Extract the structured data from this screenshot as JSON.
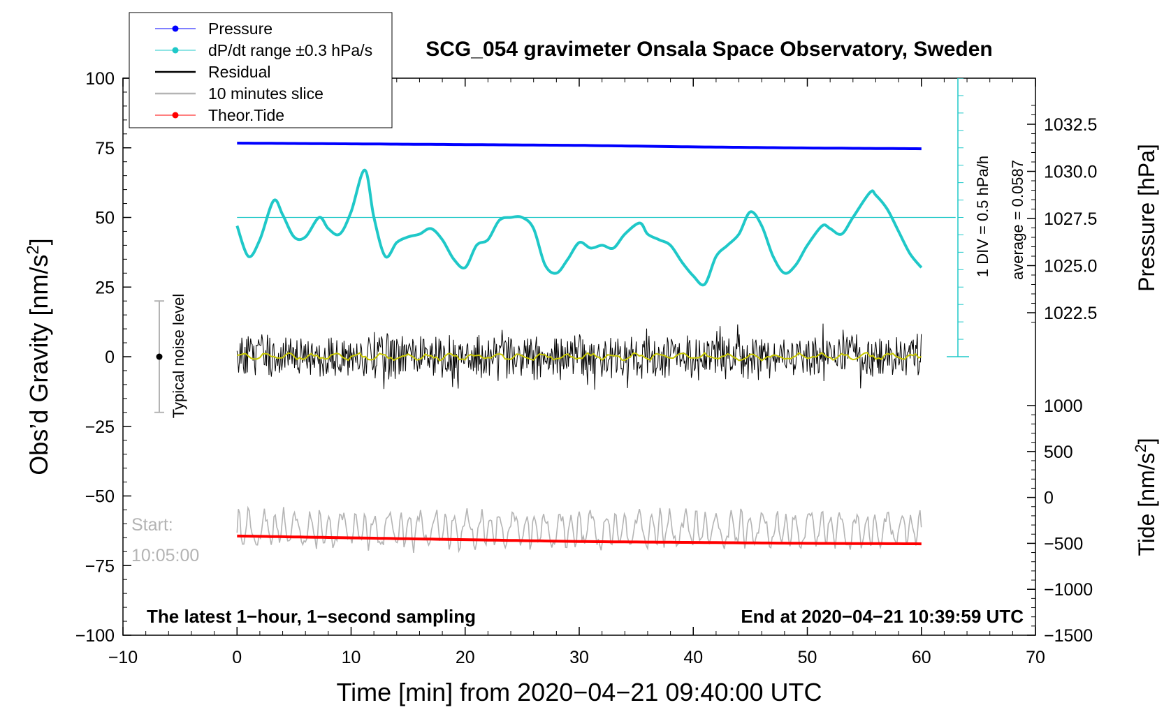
{
  "chart_data": {
    "type": "line",
    "title": "SCG_054 gravimeter Onsala Space Observatory, Sweden",
    "xlabel": "Time [min] from 2020−04−21 09:40:00 UTC",
    "ylabel_left": "Obs’d Gravity [nm/s²]",
    "ylabel_right_top": "Pressure [hPa]",
    "ylabel_right_bottom": "Tide [nm/s²]",
    "xlim": [
      -10,
      70
    ],
    "ylim_left": [
      -100,
      100
    ],
    "x_ticks": [
      "−10",
      "0",
      "10",
      "20",
      "30",
      "40",
      "50",
      "60",
      "70"
    ],
    "y_ticks_left": [
      "100",
      "75",
      "50",
      "25",
      "0",
      "−25",
      "−50",
      "−75",
      "−100"
    ],
    "pressure_ticks": [
      "1032.5",
      "1030.0",
      "1027.5",
      "1025.0",
      "1022.5"
    ],
    "tide_ticks": [
      "1000",
      "500",
      "0",
      "−500",
      "−1000",
      "−1500"
    ],
    "legend": {
      "position": "top-left",
      "entries": [
        "Pressure",
        "dP/dt range ±0.3 hPa/s",
        "Residual",
        "10 minutes slice",
        "Theor.Tide"
      ]
    },
    "annotations": {
      "bottom_left": "The latest 1−hour, 1−second sampling",
      "bottom_right": "End at 2020−04−21 10:39:59 UTC",
      "noise_label": "Typical noise level",
      "dpdt_scale": "1 DIV = 0.5 hPa/h",
      "dpdt_average": "average = 0.0587",
      "start_label": "Start:",
      "start_time": "10:05:00"
    },
    "noise_level_range": [
      -20,
      20
    ],
    "colors": {
      "pressure": "#0000ff",
      "dpdt": "#1fc8c8",
      "residual": "#000000",
      "residual_smooth": "#c8c800",
      "slice": "#b4b4b4",
      "tide": "#ff0000"
    },
    "series": [
      {
        "name": "Pressure",
        "axis": "pressure",
        "x": [
          0,
          5,
          10,
          15,
          20,
          25,
          30,
          35,
          40,
          45,
          50,
          55,
          60
        ],
        "values": [
          1031.5,
          1031.48,
          1031.46,
          1031.44,
          1031.42,
          1031.4,
          1031.38,
          1031.34,
          1031.3,
          1031.27,
          1031.24,
          1031.22,
          1031.2
        ]
      },
      {
        "name": "dP/dt",
        "axis": "left",
        "x": [
          0,
          1,
          2,
          3.2,
          4,
          5,
          6,
          7.2,
          8,
          9,
          10,
          11.2,
          12,
          13,
          14,
          15,
          16,
          17,
          18,
          19,
          20,
          21,
          22,
          23,
          24,
          25,
          26,
          27,
          28,
          29,
          30,
          31,
          32,
          33,
          34,
          35.3,
          36,
          37,
          38,
          39,
          40,
          41,
          42,
          43,
          44,
          45,
          46,
          47,
          48,
          49,
          50,
          51.3,
          52,
          53,
          54,
          55.5,
          56,
          57,
          58,
          59,
          60
        ],
        "values": [
          47,
          36,
          42,
          56,
          51,
          43,
          43,
          50,
          46,
          44,
          52,
          67,
          50,
          36,
          41,
          43,
          44,
          46,
          42,
          35,
          32,
          40,
          42,
          49,
          50,
          50,
          46,
          33,
          30,
          35,
          41,
          39,
          40,
          39,
          44,
          48,
          44,
          42,
          40,
          34,
          29,
          26,
          36,
          40,
          44,
          52,
          47,
          36,
          30,
          33,
          40,
          47,
          46,
          44,
          50,
          59,
          58,
          53,
          45,
          37,
          32
        ]
      },
      {
        "name": "Residual",
        "axis": "left",
        "x": [
          0,
          60
        ],
        "values": [
          0,
          0
        ],
        "amplitude": [
          -12,
          13
        ]
      },
      {
        "name": "10 minutes slice",
        "axis": "left",
        "x": [
          0,
          60
        ],
        "values": [
          -62,
          -62
        ],
        "amplitude": [
          -75,
          -52
        ]
      },
      {
        "name": "Theor.Tide",
        "axis": "tide",
        "x": [
          0,
          10,
          20,
          30,
          40,
          50,
          60
        ],
        "values": [
          -420,
          -440,
          -460,
          -480,
          -490,
          -500,
          -505
        ]
      }
    ]
  }
}
